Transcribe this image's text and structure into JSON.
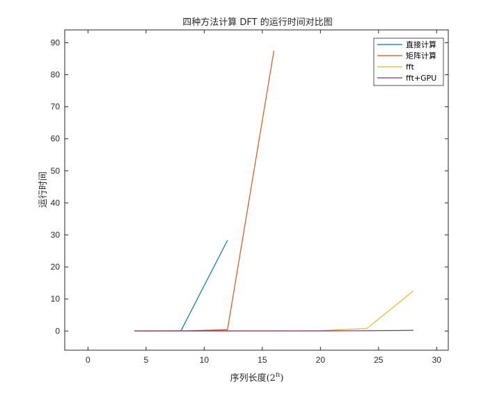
{
  "chart_data": {
    "type": "line",
    "title": "四种方法计算 DFT 的运行时间对比图",
    "xlabel_prefix": "序列长度(2",
    "xlabel_sup": "n",
    "xlabel_suffix": ")",
    "ylabel": "运行时间",
    "xlim": [
      -2,
      31
    ],
    "ylim": [
      -6,
      94
    ],
    "xticks": [
      0,
      5,
      10,
      15,
      20,
      25,
      30
    ],
    "yticks": [
      0,
      10,
      20,
      30,
      40,
      50,
      60,
      70,
      80,
      90
    ],
    "legend_position": "top-right",
    "series": [
      {
        "name": "直接计算",
        "color": "#0072BD",
        "x": [
          4,
          8,
          12
        ],
        "y": [
          0.01,
          0.1,
          28.3
        ]
      },
      {
        "name": "矩阵计算",
        "color": "#D95319",
        "x": [
          4,
          8,
          12,
          16
        ],
        "y": [
          0.01,
          0.02,
          0.4,
          87.5
        ]
      },
      {
        "name": "fft",
        "color": "#EDB120",
        "x": [
          4,
          8,
          12,
          16,
          20,
          24,
          28
        ],
        "y": [
          0.0,
          0.0,
          0.0,
          0.0,
          0.1,
          0.8,
          12.5
        ]
      },
      {
        "name": "fft+GPU",
        "color": "#7E2F8E",
        "x": [
          4,
          8,
          12,
          16,
          20,
          24,
          28
        ],
        "y": [
          0.05,
          0.05,
          0.05,
          0.05,
          0.05,
          0.1,
          0.2
        ]
      }
    ]
  }
}
